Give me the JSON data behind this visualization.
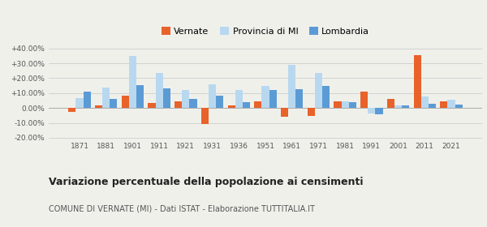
{
  "years": [
    1871,
    1881,
    1901,
    1911,
    1921,
    1931,
    1936,
    1951,
    1961,
    1971,
    1981,
    1991,
    2001,
    2011,
    2021
  ],
  "vernate": [
    -2.5,
    2.0,
    8.5,
    3.5,
    4.5,
    -11.0,
    2.0,
    4.5,
    -6.0,
    -5.5,
    4.5,
    11.0,
    6.0,
    35.5,
    4.5
  ],
  "provincia_mi": [
    6.5,
    13.5,
    35.0,
    23.5,
    12.0,
    16.0,
    12.0,
    15.0,
    29.0,
    23.5,
    4.5,
    -3.5,
    2.0,
    7.5,
    5.5
  ],
  "lombardia": [
    11.0,
    6.0,
    15.5,
    13.0,
    6.0,
    8.0,
    4.0,
    12.0,
    12.5,
    15.0,
    4.0,
    -4.5,
    1.5,
    3.0,
    2.5
  ],
  "color_vernate": "#e8622a",
  "color_provincia": "#b8d8f0",
  "color_lombardia": "#5b9bd5",
  "title": "Variazione percentuale della popolazione ai censimenti",
  "subtitle": "COMUNE DI VERNATE (MI) - Dati ISTAT - Elaborazione TUTTITALIA.IT",
  "yticks": [
    -20,
    -10,
    0,
    10,
    20,
    30,
    40
  ],
  "ylim": [
    -22,
    42
  ],
  "background_color": "#f0f0eb",
  "bar_width": 0.28
}
